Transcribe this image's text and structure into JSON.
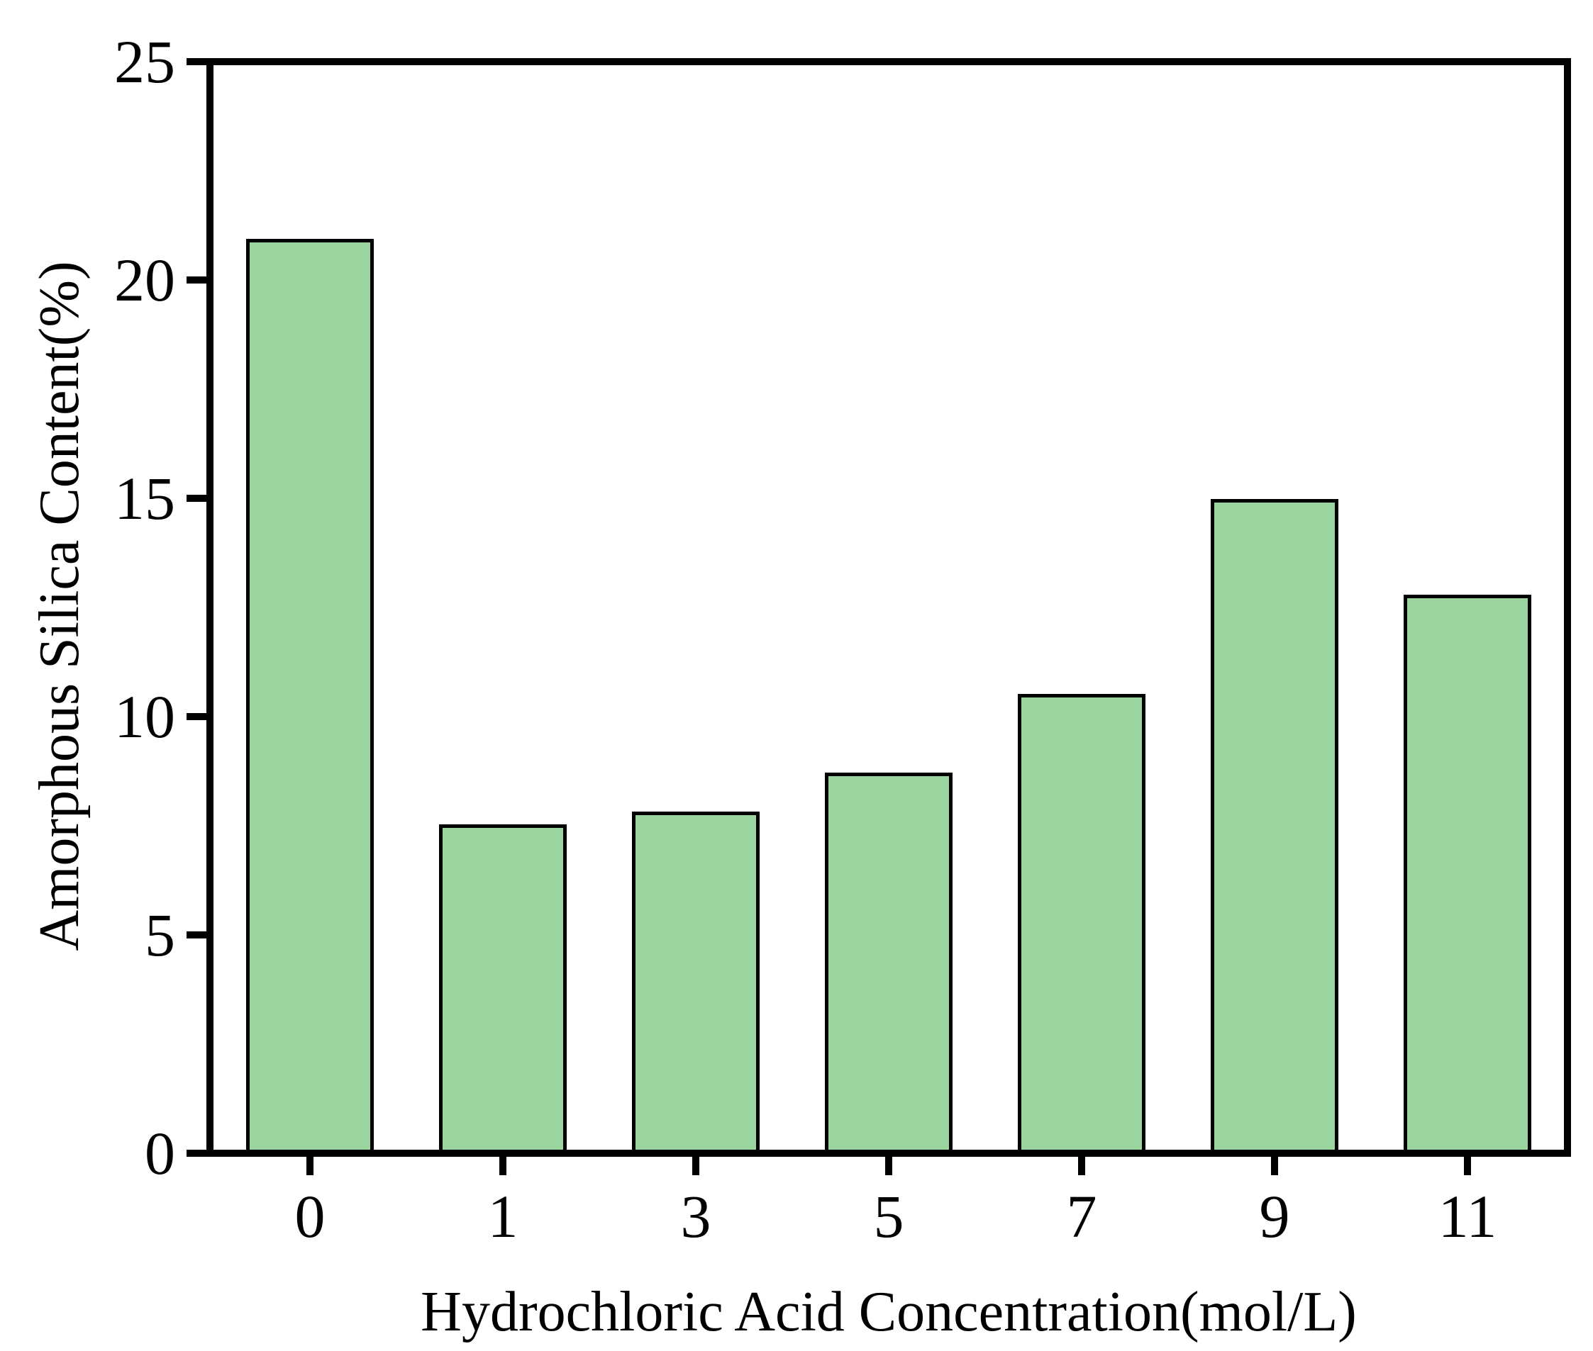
{
  "figure": {
    "background_color": "#ffffff",
    "text_color": "#000000"
  },
  "chart_data": {
    "type": "bar",
    "categories": [
      "0",
      "1",
      "3",
      "5",
      "7",
      "9",
      "11"
    ],
    "values": [
      21.0,
      7.5,
      7.8,
      8.7,
      10.5,
      15.0,
      12.8
    ],
    "title": "",
    "xlabel": "Hydrochloric Acid Concentration(mol/L)",
    "ylabel": "Amorphous Silica Content(%)",
    "ylim": [
      0,
      25
    ],
    "yticks": [
      0,
      5,
      10,
      15,
      20,
      25
    ],
    "grid": false,
    "legend": null,
    "bar_fill_color": "#9bd49e",
    "bar_edge_color": "#000000",
    "axis_color": "#000000"
  }
}
